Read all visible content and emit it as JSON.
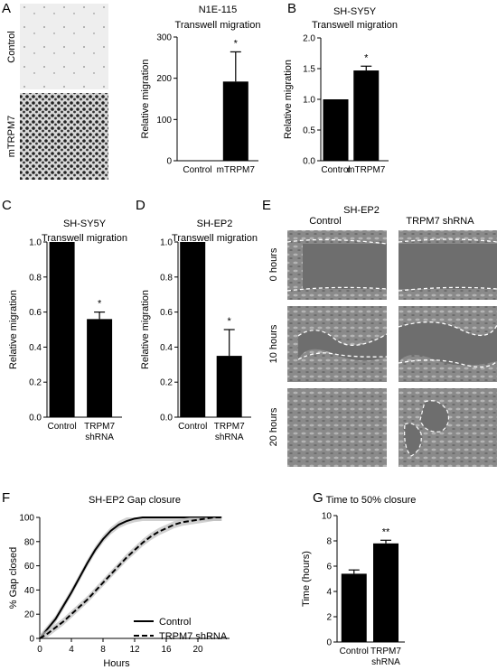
{
  "panel_labels": [
    "A",
    "B",
    "C",
    "D",
    "E",
    "F",
    "G"
  ],
  "panel_a_images": {
    "control_label": "Control",
    "mtrpm7_label": "mTRPM7"
  },
  "panel_e": {
    "title": "SH-EP2",
    "col_labels": [
      "Control",
      "TRPM7 shRNA"
    ],
    "row_labels": [
      "0 hours",
      "10 hours",
      "20 hours"
    ]
  },
  "chart_data": [
    {
      "id": "A",
      "type": "bar",
      "title": "N1E-115",
      "subtitle": "Transwell migration",
      "ylabel": "Relative migration",
      "xlabel": "",
      "categories": [
        "Control",
        "mTRPM7"
      ],
      "values": [
        1,
        192
      ],
      "errors": [
        0,
        72
      ],
      "sig": [
        "",
        "*"
      ],
      "ylim": [
        0,
        300
      ],
      "yticks": [
        0,
        100,
        200,
        300
      ],
      "yticklabels": [
        "0",
        "100",
        "200",
        "300"
      ]
    },
    {
      "id": "B",
      "type": "bar",
      "title": "SH-SY5Y",
      "subtitle": "Transwell migration",
      "ylabel": "Relative migration",
      "xlabel": "",
      "categories": [
        "Control",
        "mTRPM7"
      ],
      "values": [
        1.0,
        1.47
      ],
      "errors": [
        0,
        0.07
      ],
      "sig": [
        "",
        "*"
      ],
      "ylim": [
        0,
        2.0
      ],
      "yticks": [
        0,
        0.5,
        1.0,
        1.5,
        2.0
      ],
      "yticklabels": [
        "0.0",
        "0.5",
        "1.0",
        "1.5",
        "2.0"
      ]
    },
    {
      "id": "C",
      "type": "bar",
      "title": "SH-SY5Y",
      "subtitle": "Transwell migration",
      "ylabel": "Relative migration",
      "xlabel": "",
      "categories": [
        "Control",
        "TRPM7 shRNA"
      ],
      "values": [
        1.0,
        0.56
      ],
      "errors": [
        0,
        0.04
      ],
      "sig": [
        "",
        "*"
      ],
      "ylim": [
        0,
        1.0
      ],
      "yticks": [
        0,
        0.2,
        0.4,
        0.6,
        0.8,
        1.0
      ],
      "yticklabels": [
        "0.0",
        "0.2",
        "0.4",
        "0.6",
        "0.8",
        "1.0"
      ]
    },
    {
      "id": "D",
      "type": "bar",
      "title": "SH-EP2",
      "subtitle": "Transwell migration",
      "ylabel": "Relative migration",
      "xlabel": "",
      "categories": [
        "Control",
        "TRPM7 shRNA"
      ],
      "values": [
        1.0,
        0.35
      ],
      "errors": [
        0,
        0.15
      ],
      "sig": [
        "",
        "*"
      ],
      "ylim": [
        0,
        1.0
      ],
      "yticks": [
        0,
        0.2,
        0.4,
        0.6,
        0.8,
        1.0
      ],
      "yticklabels": [
        "0.0",
        "0.2",
        "0.4",
        "0.6",
        "0.8",
        "1.0"
      ]
    },
    {
      "id": "F",
      "type": "line",
      "title": "SH-EP2 Gap closure",
      "xlabel": "Hours",
      "ylabel": "% Gap closed",
      "xlim": [
        0,
        24
      ],
      "ylim": [
        0,
        100
      ],
      "xticks": [
        0,
        4,
        8,
        12,
        16,
        20
      ],
      "yticks": [
        0,
        20,
        40,
        60,
        80,
        100
      ],
      "legend": "bottom-right",
      "series": [
        {
          "name": "Control",
          "style": "solid",
          "x": [
            0,
            1,
            2,
            3,
            4,
            5,
            6,
            7,
            8,
            9,
            10,
            11,
            12,
            13,
            14,
            15,
            16,
            17,
            18,
            19,
            20,
            21,
            22,
            23
          ],
          "y": [
            0,
            8,
            16,
            27,
            38,
            50,
            62,
            73,
            82,
            89,
            94,
            97,
            99,
            100,
            100,
            100,
            100,
            100,
            100,
            100,
            100,
            100,
            100,
            100
          ]
        },
        {
          "name": "TRPM7 shRNA",
          "style": "dashed",
          "x": [
            0,
            1,
            2,
            3,
            4,
            5,
            6,
            7,
            8,
            9,
            10,
            11,
            12,
            13,
            14,
            15,
            16,
            17,
            18,
            19,
            20,
            21,
            22,
            23
          ],
          "y": [
            0,
            4,
            9,
            14,
            20,
            26,
            32,
            39,
            46,
            53,
            60,
            67,
            73,
            79,
            84,
            88,
            91,
            94,
            96,
            97,
            98,
            99,
            100,
            100
          ]
        }
      ]
    },
    {
      "id": "G",
      "type": "bar",
      "title": "Time to 50% closure",
      "ylabel": "Time (hours)",
      "xlabel": "",
      "categories": [
        "Control",
        "TRPM7 shRNA"
      ],
      "values": [
        5.4,
        7.8
      ],
      "errors": [
        0.3,
        0.25
      ],
      "sig": [
        "",
        "**"
      ],
      "ylim": [
        0,
        10
      ],
      "yticks": [
        0,
        2,
        4,
        6,
        8,
        10
      ],
      "yticklabels": [
        "0",
        "2",
        "4",
        "6",
        "8",
        "10"
      ]
    }
  ]
}
